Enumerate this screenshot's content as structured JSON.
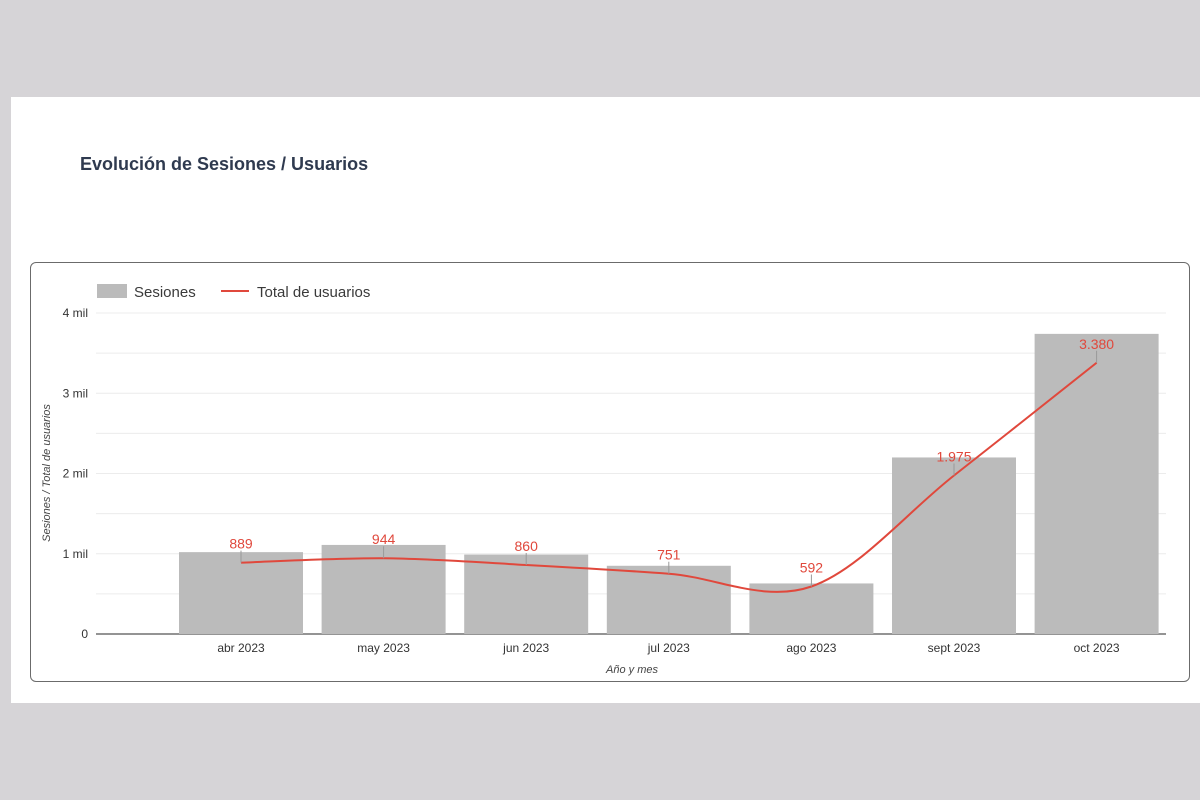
{
  "page": {
    "title": "Evolución de Sesiones / Usuarios"
  },
  "colors": {
    "bars": "#bbbbbb",
    "line": "#e0483c",
    "grid": "#ececec",
    "axis": "#555555"
  },
  "chart_data": {
    "type": "bar",
    "title": "",
    "legend": {
      "placement": "top-left",
      "items": [
        "Sesiones",
        "Total de usuarios"
      ]
    },
    "categories": [
      "abr 2023",
      "may 2023",
      "jun 2023",
      "jul 2023",
      "ago 2023",
      "sept 2023",
      "oct 2023"
    ],
    "series": [
      {
        "name": "Sesiones",
        "type": "bar",
        "values": [
          1020,
          1110,
          990,
          850,
          630,
          2200,
          3740
        ]
      },
      {
        "name": "Total de usuarios",
        "type": "line",
        "values": [
          889,
          944,
          860,
          751,
          592,
          1975,
          3380
        ],
        "labels": [
          "889",
          "944",
          "860",
          "751",
          "592",
          "1.975",
          "3.380"
        ]
      }
    ],
    "xlabel": "Año y mes",
    "ylabel": "Sesiones / Total de usuarios",
    "ylim": [
      0,
      4000
    ],
    "yticks": [
      0,
      1000,
      2000,
      3000,
      4000
    ],
    "ytick_labels": [
      "0",
      "1 mil",
      "2 mil",
      "3 mil",
      "4 mil"
    ],
    "grid": true
  }
}
